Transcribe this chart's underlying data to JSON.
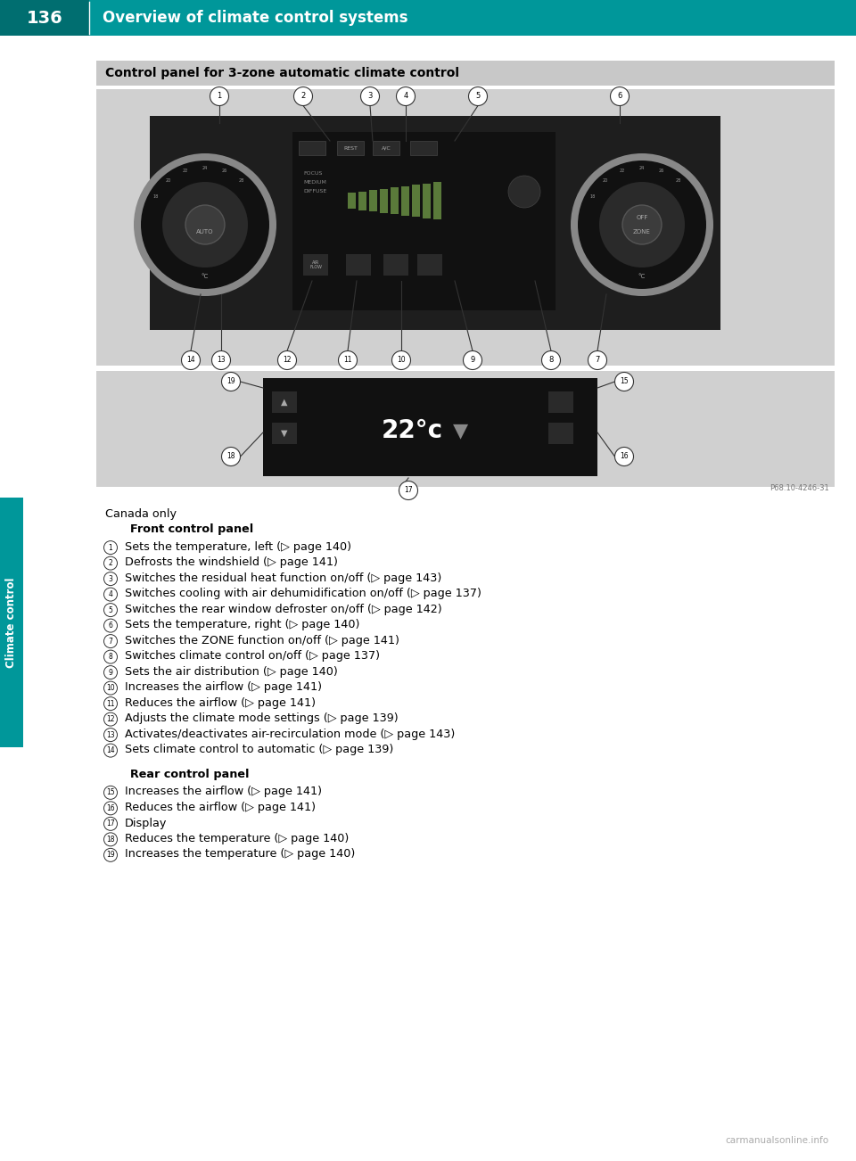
{
  "page_bg": "#ffffff",
  "header_bg": "#00979a",
  "header_text": "Overview of climate control systems",
  "header_page_num": "136",
  "header_text_color": "#ffffff",
  "side_tab_color": "#00979a",
  "side_tab_text": "Climate control",
  "side_tab_text_color": "#ffffff",
  "box_title": "Control panel for 3-zone automatic climate control",
  "box_title_bg": "#c8c8c8",
  "box_title_text_color": "#000000",
  "image1_bg": "#d0d0d0",
  "image2_bg": "#d0d0d0",
  "canada_only_text": "Canada only",
  "front_panel_header": "Front control panel",
  "rear_panel_header": "Rear control panel",
  "items_front": [
    {
      "num": "1",
      "text": "Sets the temperature, left (▷ page 140)"
    },
    {
      "num": "2",
      "text": "Defrosts the windshield (▷ page 141)"
    },
    {
      "num": "3",
      "text": "Switches the residual heat function on/off (▷ page 143)"
    },
    {
      "num": "4",
      "text": "Switches cooling with air dehumidification on/off (▷ page 137)"
    },
    {
      "num": "5",
      "text": "Switches the rear window defroster on/off (▷ page 142)"
    },
    {
      "num": "6",
      "text": "Sets the temperature, right (▷ page 140)"
    },
    {
      "num": "7",
      "text": "Switches the ZONE function on/off (▷ page 141)"
    },
    {
      "num": "8",
      "text": "Switches climate control on/off (▷ page 137)"
    },
    {
      "num": "9",
      "text": "Sets the air distribution (▷ page 140)"
    },
    {
      "num": "10",
      "text": "Increases the airflow (▷ page 141)"
    },
    {
      "num": "11",
      "text": "Reduces the airflow (▷ page 141)"
    },
    {
      "num": "12",
      "text": "Adjusts the climate mode settings (▷ page 139)"
    },
    {
      "num": "13",
      "text": "Activates/deactivates air-recirculation mode (▷ page 143)"
    },
    {
      "num": "14",
      "text": "Sets climate control to automatic (▷ page 139)"
    }
  ],
  "items_rear": [
    {
      "num": "15",
      "text": "Increases the airflow (▷ page 141)"
    },
    {
      "num": "16",
      "text": "Reduces the airflow (▷ page 141)"
    },
    {
      "num": "17",
      "text": "Display"
    },
    {
      "num": "18",
      "text": "Reduces the temperature (▷ page 140)"
    },
    {
      "num": "19",
      "text": "Increases the temperature (▷ page 140)"
    }
  ],
  "footer_text": "carmanualsonline.info",
  "text_color": "#000000",
  "body_font_size": 9.2
}
